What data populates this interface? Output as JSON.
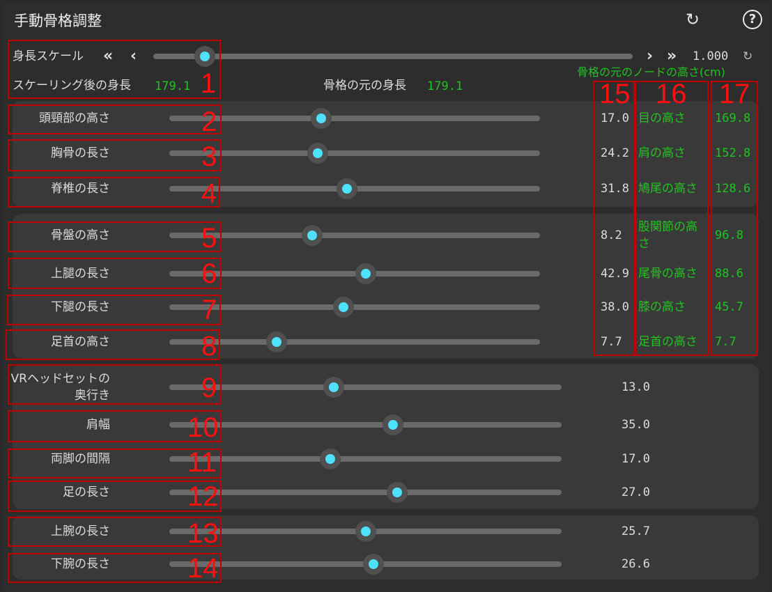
{
  "header": {
    "title": "手動骨格調整",
    "reset_icon": "refresh-icon",
    "help_icon": "help-circle-icon"
  },
  "height_scale": {
    "label": "身長スケール",
    "value": "1.000",
    "slider_fraction": 0.107,
    "reset_icon": "refresh-icon"
  },
  "info": {
    "scaled_height_label": "スケーリング後の身長",
    "scaled_height_value": "179.1",
    "original_height_label": "骨格の元の身長",
    "original_height_value": "179.1",
    "node_heights_header": "骨格の元のノードの高さ(cm)"
  },
  "groups": [
    {
      "rows": [
        {
          "label": "頭頸部の高さ",
          "value": "17.0",
          "fraction": 0.41,
          "node": "目の高さ",
          "node_value": "169.8"
        },
        {
          "label": "胸骨の長さ",
          "value": "24.2",
          "fraction": 0.4,
          "node": "肩の高さ",
          "node_value": "152.8"
        },
        {
          "label": "脊椎の長さ",
          "value": "31.8",
          "fraction": 0.48,
          "node": "鳩尾の高さ",
          "node_value": "128.6"
        }
      ]
    },
    {
      "rows": [
        {
          "label": "骨盤の高さ",
          "value": "8.2",
          "fraction": 0.385,
          "node": "股関節の高さ",
          "node_value": "96.8"
        },
        {
          "label": "上腿の長さ",
          "value": "42.9",
          "fraction": 0.53,
          "node": "尾骨の高さ",
          "node_value": "88.6"
        },
        {
          "label": "下腿の長さ",
          "value": "38.0",
          "fraction": 0.47,
          "node": "膝の高さ",
          "node_value": "45.7"
        },
        {
          "label": "足首の高さ",
          "value": "7.7",
          "fraction": 0.29,
          "node": "足首の高さ",
          "node_value": "7.7"
        }
      ]
    },
    {
      "rows": [
        {
          "label": "VRヘッドセットの奥行き",
          "value": "13.0",
          "fraction": 0.42
        },
        {
          "label": "肩幅",
          "value": "35.0",
          "fraction": 0.57
        },
        {
          "label": "両脚の間隔",
          "value": "17.0",
          "fraction": 0.41
        },
        {
          "label": "足の長さ",
          "value": "27.0",
          "fraction": 0.58
        }
      ]
    },
    {
      "rows": [
        {
          "label": "上腕の長さ",
          "value": "25.7",
          "fraction": 0.5
        },
        {
          "label": "下腕の長さ",
          "value": "26.6",
          "fraction": 0.52
        }
      ]
    }
  ],
  "annotations": [
    "1",
    "2",
    "3",
    "4",
    "5",
    "6",
    "7",
    "8",
    "9",
    "10",
    "11",
    "12",
    "13",
    "14",
    "15",
    "16",
    "17"
  ],
  "colors": {
    "accent": "#4ee2ff",
    "green": "#22c322",
    "annotation": "#ff1010"
  }
}
